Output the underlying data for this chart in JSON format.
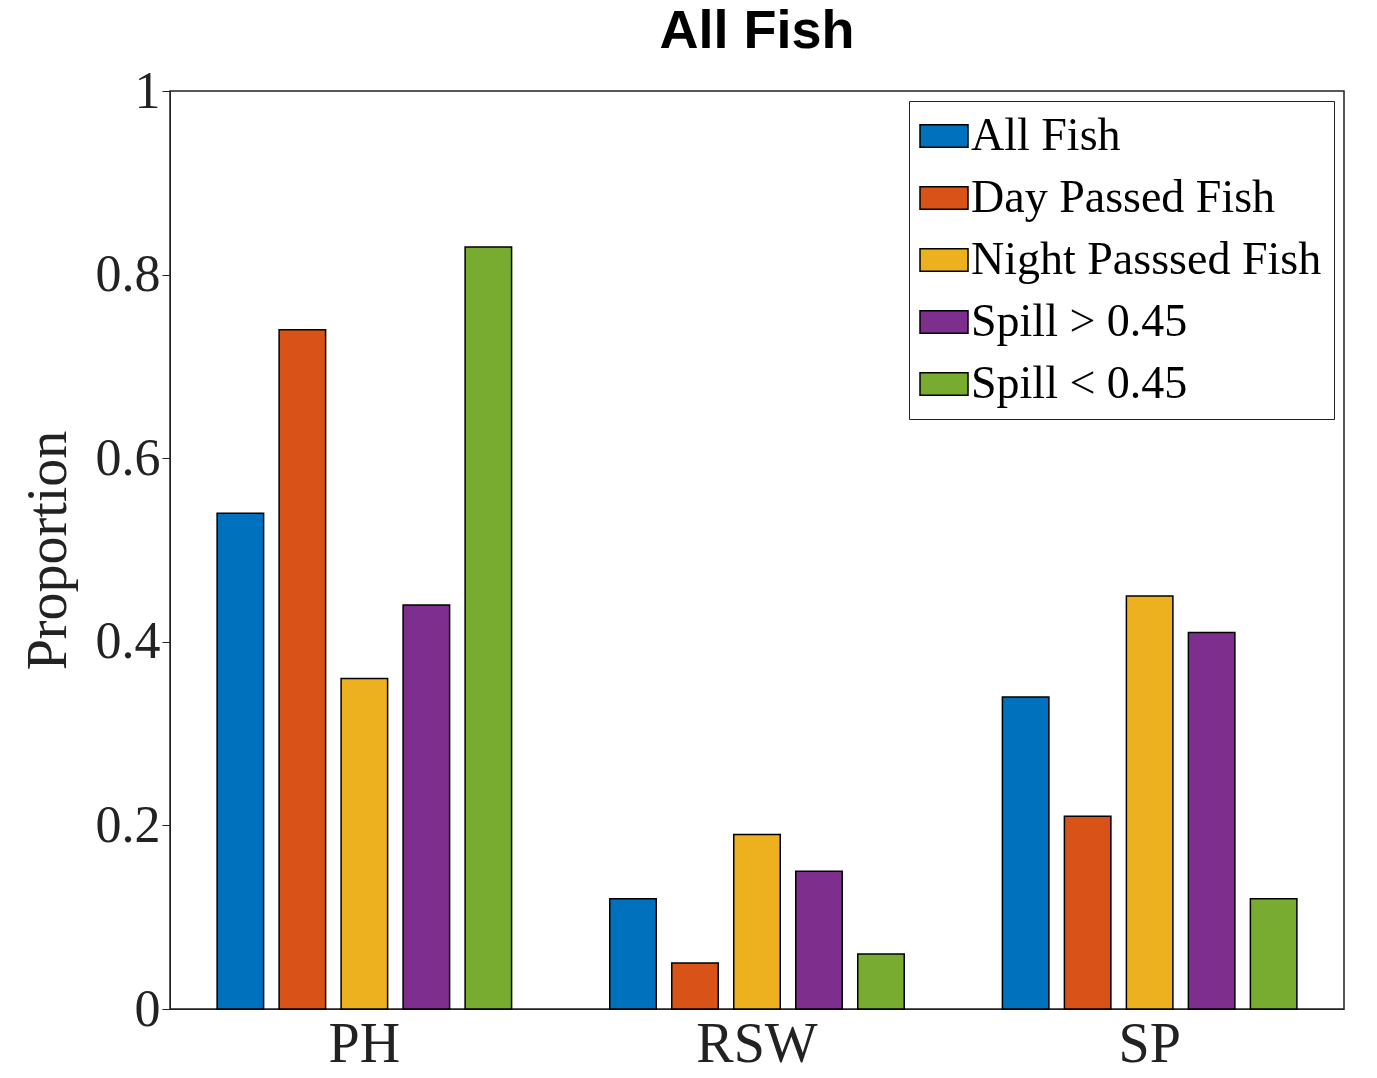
{
  "chart_data": {
    "type": "bar",
    "title": "All Fish",
    "ylabel": "Proportion",
    "categories": [
      "PH",
      "RSW",
      "SP"
    ],
    "series": [
      {
        "name": "All Fish",
        "color": "#0072bd",
        "values": [
          0.54,
          0.12,
          0.34
        ]
      },
      {
        "name": "Day Passed Fish",
        "color": "#d95319",
        "values": [
          0.74,
          0.05,
          0.21
        ]
      },
      {
        "name": "Night Passsed Fish",
        "color": "#edb120",
        "values": [
          0.36,
          0.19,
          0.45
        ]
      },
      {
        "name": "Spill > 0.45",
        "color": "#7e2f8e",
        "values": [
          0.44,
          0.15,
          0.41
        ]
      },
      {
        "name": "Spill < 0.45",
        "color": "#77ac30",
        "values": [
          0.83,
          0.06,
          0.12
        ]
      }
    ],
    "ylim": [
      0,
      1
    ],
    "yticks": [
      0,
      0.2,
      0.4,
      0.6,
      0.8,
      1
    ],
    "grid": false,
    "legend": "top right"
  }
}
